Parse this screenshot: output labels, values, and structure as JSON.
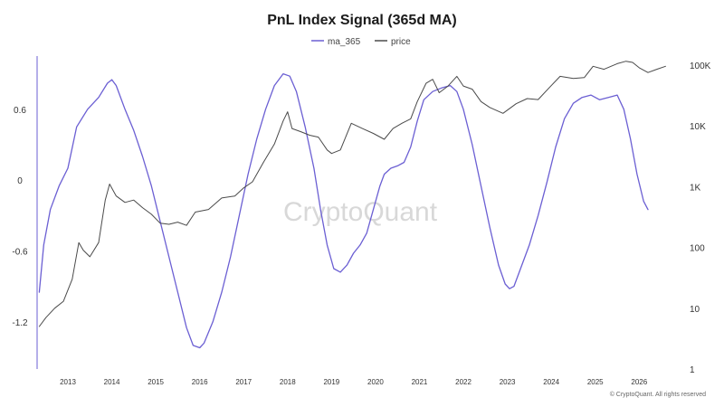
{
  "chart_data": {
    "type": "line",
    "title": "PnL Index Signal (365d MA)",
    "xlim": [
      2012.3,
      2026.9
    ],
    "x_ticks": [
      "2013",
      "2014",
      "2015",
      "2016",
      "2017",
      "2018",
      "2019",
      "2020",
      "2021",
      "2022",
      "2023",
      "2024",
      "2025",
      "2026"
    ],
    "y_left": {
      "ticks": [
        "0.6",
        "0",
        "-0.6",
        "-1.2"
      ],
      "tick_values": [
        0.6,
        0,
        -0.6,
        -1.2
      ],
      "range": [
        -1.6,
        1.05
      ]
    },
    "y_right": {
      "scale": "log",
      "ticks": [
        "100K",
        "10K",
        "1K",
        "100",
        "10",
        "1"
      ],
      "tick_values": [
        100000,
        10000,
        1000,
        100,
        10,
        1
      ],
      "range": [
        1,
        140000
      ]
    },
    "series": [
      {
        "name": "ma_365",
        "axis": "left",
        "color": "#6b5fd3",
        "points": [
          [
            2012.35,
            -0.95
          ],
          [
            2012.45,
            -0.55
          ],
          [
            2012.6,
            -0.25
          ],
          [
            2012.8,
            -0.05
          ],
          [
            2013.0,
            0.1
          ],
          [
            2013.2,
            0.45
          ],
          [
            2013.45,
            0.6
          ],
          [
            2013.7,
            0.7
          ],
          [
            2013.9,
            0.82
          ],
          [
            2014.0,
            0.85
          ],
          [
            2014.1,
            0.8
          ],
          [
            2014.3,
            0.6
          ],
          [
            2014.5,
            0.42
          ],
          [
            2014.7,
            0.2
          ],
          [
            2014.9,
            -0.05
          ],
          [
            2015.1,
            -0.35
          ],
          [
            2015.3,
            -0.65
          ],
          [
            2015.5,
            -0.95
          ],
          [
            2015.7,
            -1.25
          ],
          [
            2015.85,
            -1.4
          ],
          [
            2016.0,
            -1.42
          ],
          [
            2016.1,
            -1.38
          ],
          [
            2016.3,
            -1.2
          ],
          [
            2016.5,
            -0.95
          ],
          [
            2016.7,
            -0.65
          ],
          [
            2016.9,
            -0.3
          ],
          [
            2017.1,
            0.05
          ],
          [
            2017.3,
            0.35
          ],
          [
            2017.5,
            0.6
          ],
          [
            2017.7,
            0.8
          ],
          [
            2017.9,
            0.9
          ],
          [
            2018.05,
            0.88
          ],
          [
            2018.2,
            0.75
          ],
          [
            2018.4,
            0.45
          ],
          [
            2018.6,
            0.1
          ],
          [
            2018.75,
            -0.25
          ],
          [
            2018.9,
            -0.55
          ],
          [
            2019.05,
            -0.75
          ],
          [
            2019.2,
            -0.78
          ],
          [
            2019.35,
            -0.72
          ],
          [
            2019.5,
            -0.62
          ],
          [
            2019.65,
            -0.55
          ],
          [
            2019.8,
            -0.45
          ],
          [
            2019.95,
            -0.25
          ],
          [
            2020.1,
            -0.05
          ],
          [
            2020.2,
            0.05
          ],
          [
            2020.35,
            0.1
          ],
          [
            2020.5,
            0.12
          ],
          [
            2020.65,
            0.15
          ],
          [
            2020.8,
            0.28
          ],
          [
            2020.95,
            0.5
          ],
          [
            2021.1,
            0.68
          ],
          [
            2021.3,
            0.75
          ],
          [
            2021.5,
            0.78
          ],
          [
            2021.7,
            0.8
          ],
          [
            2021.85,
            0.75
          ],
          [
            2022.0,
            0.6
          ],
          [
            2022.2,
            0.3
          ],
          [
            2022.4,
            -0.05
          ],
          [
            2022.6,
            -0.4
          ],
          [
            2022.8,
            -0.72
          ],
          [
            2022.95,
            -0.88
          ],
          [
            2023.05,
            -0.92
          ],
          [
            2023.15,
            -0.9
          ],
          [
            2023.3,
            -0.75
          ],
          [
            2023.5,
            -0.55
          ],
          [
            2023.7,
            -0.3
          ],
          [
            2023.9,
            -0.02
          ],
          [
            2024.1,
            0.28
          ],
          [
            2024.3,
            0.52
          ],
          [
            2024.5,
            0.65
          ],
          [
            2024.7,
            0.7
          ],
          [
            2024.9,
            0.72
          ],
          [
            2025.1,
            0.68
          ],
          [
            2025.3,
            0.7
          ],
          [
            2025.5,
            0.72
          ],
          [
            2025.65,
            0.6
          ],
          [
            2025.8,
            0.35
          ],
          [
            2025.95,
            0.05
          ],
          [
            2026.1,
            -0.18
          ],
          [
            2026.2,
            -0.25
          ]
        ]
      },
      {
        "name": "price",
        "axis": "right",
        "color": "#4a4a4a",
        "points": [
          [
            2012.35,
            5
          ],
          [
            2012.5,
            7
          ],
          [
            2012.7,
            10
          ],
          [
            2012.9,
            13
          ],
          [
            2013.1,
            30
          ],
          [
            2013.25,
            120
          ],
          [
            2013.35,
            90
          ],
          [
            2013.5,
            70
          ],
          [
            2013.7,
            120
          ],
          [
            2013.85,
            600
          ],
          [
            2013.95,
            1100
          ],
          [
            2014.1,
            700
          ],
          [
            2014.3,
            550
          ],
          [
            2014.5,
            600
          ],
          [
            2014.7,
            450
          ],
          [
            2014.9,
            350
          ],
          [
            2015.1,
            250
          ],
          [
            2015.3,
            240
          ],
          [
            2015.5,
            260
          ],
          [
            2015.7,
            230
          ],
          [
            2015.9,
            380
          ],
          [
            2016.2,
            420
          ],
          [
            2016.5,
            650
          ],
          [
            2016.8,
            700
          ],
          [
            2017.0,
            950
          ],
          [
            2017.2,
            1200
          ],
          [
            2017.45,
            2500
          ],
          [
            2017.7,
            5000
          ],
          [
            2017.9,
            12000
          ],
          [
            2018.0,
            17000
          ],
          [
            2018.1,
            9000
          ],
          [
            2018.3,
            8000
          ],
          [
            2018.5,
            7000
          ],
          [
            2018.7,
            6500
          ],
          [
            2018.9,
            4000
          ],
          [
            2019.0,
            3500
          ],
          [
            2019.2,
            4000
          ],
          [
            2019.45,
            11000
          ],
          [
            2019.7,
            9000
          ],
          [
            2019.95,
            7500
          ],
          [
            2020.2,
            6000
          ],
          [
            2020.4,
            9000
          ],
          [
            2020.6,
            11000
          ],
          [
            2020.8,
            13000
          ],
          [
            2020.95,
            25000
          ],
          [
            2021.15,
            50000
          ],
          [
            2021.3,
            58000
          ],
          [
            2021.45,
            35000
          ],
          [
            2021.65,
            45000
          ],
          [
            2021.85,
            65000
          ],
          [
            2022.0,
            45000
          ],
          [
            2022.2,
            40000
          ],
          [
            2022.4,
            25000
          ],
          [
            2022.6,
            20000
          ],
          [
            2022.9,
            16000
          ],
          [
            2023.2,
            23000
          ],
          [
            2023.45,
            28000
          ],
          [
            2023.7,
            27000
          ],
          [
            2023.95,
            42000
          ],
          [
            2024.2,
            65000
          ],
          [
            2024.5,
            60000
          ],
          [
            2024.75,
            62000
          ],
          [
            2024.95,
            95000
          ],
          [
            2025.2,
            85000
          ],
          [
            2025.5,
            105000
          ],
          [
            2025.7,
            115000
          ],
          [
            2025.85,
            110000
          ],
          [
            2026.0,
            90000
          ],
          [
            2026.2,
            75000
          ],
          [
            2026.4,
            85000
          ],
          [
            2026.6,
            95000
          ]
        ]
      }
    ],
    "legend": {
      "placement": "top-center",
      "entries": [
        "ma_365",
        "price"
      ]
    },
    "watermark": "CryptoQuant",
    "copyright": "© CryptoQuant. All rights reserved",
    "grid": false
  }
}
